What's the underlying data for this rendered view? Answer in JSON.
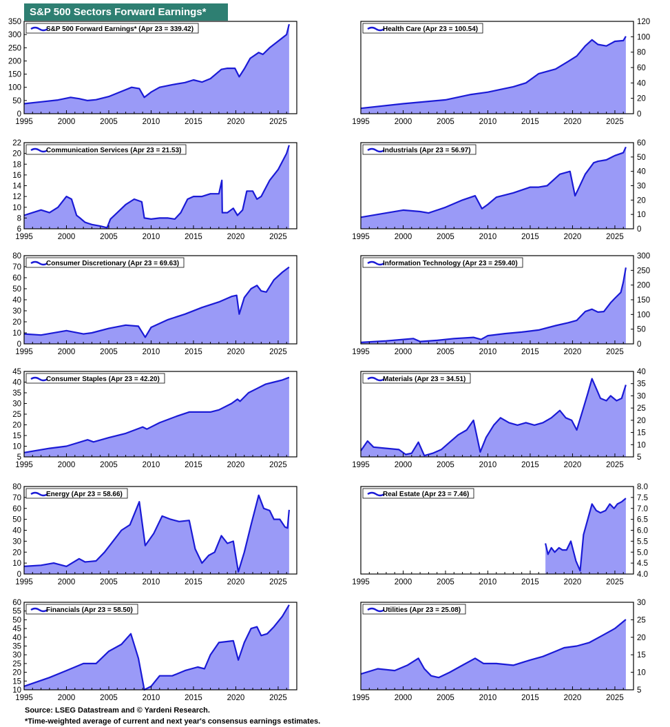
{
  "header": {
    "title": "S&P 500 Sectors Forward Earnings*"
  },
  "footer": {
    "source": "Source: LSEG Datastream and © Yardeni Research.",
    "note": "*Time-weighted average of current and next year's consensus earnings estimates."
  },
  "colors": {
    "line": "#1a1ad6",
    "fill": "#9a9af7",
    "banner": "#2e7f72"
  },
  "chart_data": [
    {
      "type": "area",
      "key": "sp500",
      "legend": "S&P 500 Forward Earnings* (Apr 23 = 339.42)",
      "yaxis": "left",
      "ylim": [
        0,
        350
      ],
      "yticks": [
        0,
        50,
        100,
        150,
        200,
        250,
        300,
        350
      ],
      "xticks": [
        1995,
        2000,
        2005,
        2010,
        2015,
        2020,
        2025
      ],
      "xlim": [
        1995,
        2027.2
      ],
      "x": [
        1995,
        1997,
        1999,
        2000.5,
        2001.5,
        2002.5,
        2003.5,
        2005,
        2006,
        2007.7,
        2008.6,
        2009.2,
        2010,
        2011,
        2012.5,
        2014,
        2015,
        2016,
        2017,
        2018.3,
        2019,
        2019.9,
        2020.4,
        2021,
        2021.7,
        2022.7,
        2023.2,
        2024,
        2025,
        2026,
        2026.3
      ],
      "y": [
        38,
        45,
        52,
        62,
        57,
        50,
        53,
        65,
        78,
        100,
        95,
        62,
        82,
        100,
        110,
        118,
        128,
        120,
        133,
        168,
        172,
        172,
        140,
        170,
        210,
        232,
        225,
        250,
        275,
        300,
        339.42
      ]
    },
    {
      "type": "area",
      "key": "health",
      "legend": "Health Care (Apr 23 = 100.54)",
      "yaxis": "right",
      "ylim": [
        0,
        120
      ],
      "yticks": [
        0,
        20,
        40,
        60,
        80,
        100,
        120
      ],
      "xticks": [
        1995,
        2000,
        2005,
        2010,
        2015,
        2020,
        2025
      ],
      "xlim": [
        1995,
        2027.2
      ],
      "x": [
        1995,
        2000,
        2005,
        2008,
        2010,
        2013,
        2014.5,
        2016,
        2018,
        2019.5,
        2020.5,
        2021.5,
        2022.3,
        2023,
        2024,
        2025,
        2026,
        2026.3
      ],
      "y": [
        7,
        13,
        18,
        25,
        28,
        35,
        40,
        52,
        58,
        68,
        75,
        88,
        96,
        90,
        88,
        94,
        95,
        100.54
      ]
    },
    {
      "type": "area",
      "key": "comm",
      "legend": "Communication Services (Apr 23 = 21.53)",
      "yaxis": "left",
      "ylim": [
        6,
        22
      ],
      "yticks": [
        6,
        8,
        10,
        12,
        14,
        16,
        18,
        20,
        22
      ],
      "xticks": [
        1995,
        2000,
        2005,
        2010,
        2015,
        2020,
        2025
      ],
      "xlim": [
        1995,
        2027.2
      ],
      "x": [
        1995,
        1996,
        1997,
        1998,
        1999,
        2000,
        2000.6,
        2001.2,
        2001.6,
        2002.2,
        2003,
        2004,
        2004.8,
        2005.2,
        2006,
        2007,
        2008,
        2008.9,
        2009.2,
        2010,
        2011,
        2012,
        2012.8,
        2013.5,
        2014.3,
        2015,
        2016,
        2017,
        2018,
        2018.35,
        2018.4,
        2019,
        2019.7,
        2020.2,
        2020.8,
        2021.3,
        2022,
        2022.5,
        2023,
        2024,
        2025,
        2026,
        2026.3
      ],
      "y": [
        8.5,
        9,
        9.5,
        9,
        10,
        12,
        11.5,
        8.5,
        8,
        7.2,
        6.8,
        6.5,
        6.2,
        7.8,
        9,
        10.5,
        11.5,
        11,
        8,
        7.8,
        8,
        8,
        7.8,
        9,
        11.5,
        12,
        12,
        12.5,
        12.5,
        15,
        9,
        9,
        9.8,
        8.5,
        9.5,
        13,
        13,
        11.5,
        12,
        15,
        17,
        20,
        21.53
      ]
    },
    {
      "type": "area",
      "key": "industrials",
      "legend": "Industrials (Apr 23 = 56.97)",
      "yaxis": "right",
      "ylim": [
        0,
        60
      ],
      "yticks": [
        0,
        10,
        20,
        30,
        40,
        50,
        60
      ],
      "xticks": [
        1995,
        2000,
        2005,
        2010,
        2015,
        2020,
        2025
      ],
      "xlim": [
        1995,
        2027.2
      ],
      "x": [
        1995,
        1998,
        2000,
        2002,
        2003,
        2005,
        2007,
        2008.5,
        2009.3,
        2010,
        2011,
        2013,
        2015,
        2016,
        2017,
        2018.5,
        2019.7,
        2020.3,
        2020.7,
        2021.5,
        2022.5,
        2023,
        2024,
        2025,
        2026,
        2026.3
      ],
      "y": [
        8,
        11,
        13,
        12,
        11,
        15,
        20,
        23,
        14,
        17,
        22,
        25,
        29,
        29,
        30,
        38,
        40,
        23,
        28,
        38,
        46,
        47,
        48,
        51,
        53,
        56.97
      ]
    },
    {
      "type": "area",
      "key": "consdisc",
      "legend": "Consumer Discretionary (Apr 23 = 69.63)",
      "yaxis": "left",
      "ylim": [
        0,
        80
      ],
      "yticks": [
        0,
        10,
        20,
        30,
        40,
        50,
        60,
        70,
        80
      ],
      "xticks": [
        1995,
        2000,
        2005,
        2010,
        2015,
        2020,
        2025
      ],
      "xlim": [
        1995,
        2027.2
      ],
      "x": [
        1995,
        1997,
        2000,
        2002,
        2003,
        2005,
        2007,
        2008.5,
        2009.3,
        2010,
        2012,
        2014,
        2016,
        2018,
        2019.5,
        2020.1,
        2020.4,
        2021,
        2021.8,
        2022.5,
        2023,
        2023.6,
        2024.5,
        2025.5,
        2026.3
      ],
      "y": [
        9,
        8,
        12,
        9,
        10,
        14,
        17,
        16,
        6,
        15,
        22,
        27,
        33,
        38,
        43,
        44,
        27,
        42,
        50,
        53,
        48,
        47,
        58,
        65,
        69.63
      ]
    },
    {
      "type": "area",
      "key": "infotech",
      "legend": "Information Technology (Apr 23 = 259.40)",
      "yaxis": "right",
      "ylim": [
        0,
        300
      ],
      "yticks": [
        0,
        50,
        100,
        150,
        200,
        250,
        300
      ],
      "xticks": [
        1995,
        2000,
        2005,
        2010,
        2015,
        2020,
        2025
      ],
      "xlim": [
        1995,
        2027.2
      ],
      "x": [
        1995,
        1998,
        2000,
        2001.2,
        2002,
        2004,
        2006,
        2008.3,
        2009.2,
        2010,
        2012,
        2014,
        2016,
        2018,
        2019.5,
        2020.5,
        2021.5,
        2022.3,
        2023,
        2023.7,
        2024.5,
        2025,
        2025.7,
        2026,
        2026.3
      ],
      "y": [
        5,
        10,
        15,
        18,
        8,
        12,
        18,
        22,
        15,
        28,
        35,
        40,
        47,
        62,
        72,
        80,
        110,
        118,
        108,
        110,
        140,
        155,
        175,
        210,
        259.4
      ]
    },
    {
      "type": "area",
      "key": "staples",
      "legend": "Consumer Staples (Apr 23 = 42.20)",
      "yaxis": "left",
      "ylim": [
        5,
        45
      ],
      "yticks": [
        5,
        10,
        15,
        20,
        25,
        30,
        35,
        40,
        45
      ],
      "xticks": [
        1995,
        2000,
        2005,
        2010,
        2015,
        2020,
        2025
      ],
      "xlim": [
        1995,
        2027.2
      ],
      "x": [
        1995,
        1998,
        2000,
        2002.5,
        2003.2,
        2005,
        2007,
        2009,
        2009.5,
        2011,
        2013,
        2014.5,
        2016,
        2017,
        2018,
        2019.5,
        2020.2,
        2020.5,
        2021.5,
        2022.5,
        2023.5,
        2024.5,
        2025.5,
        2026.3
      ],
      "y": [
        7,
        9,
        10,
        13,
        12,
        14,
        16,
        19,
        18,
        21,
        24,
        26,
        26,
        26,
        27,
        30,
        32,
        31,
        35,
        37,
        39,
        40,
        41,
        42.2
      ]
    },
    {
      "type": "area",
      "key": "materials",
      "legend": "Materials (Apr 23 = 34.51)",
      "yaxis": "right",
      "ylim": [
        5,
        40
      ],
      "yticks": [
        5,
        10,
        15,
        20,
        25,
        30,
        35,
        40
      ],
      "xticks": [
        1995,
        2000,
        2005,
        2010,
        2015,
        2020,
        2025
      ],
      "xlim": [
        1995,
        2027.2
      ],
      "x": [
        1995,
        1995.8,
        1996.5,
        1998,
        1999.5,
        2000.3,
        2001,
        2001.8,
        2002.5,
        2003.5,
        2004.5,
        2005.5,
        2006.5,
        2007.5,
        2008.3,
        2009.1,
        2009.8,
        2010.7,
        2011.5,
        2012.5,
        2013.5,
        2014.5,
        2015.5,
        2016.5,
        2017.5,
        2018.5,
        2019.2,
        2019.9,
        2020.5,
        2021.2,
        2021.8,
        2022.3,
        2022.8,
        2023.3,
        2024,
        2024.5,
        2025.2,
        2025.8,
        2026.3
      ],
      "y": [
        7.5,
        11.5,
        9,
        8.5,
        8,
        6,
        6.5,
        11,
        5.5,
        6.5,
        8,
        11,
        14,
        16,
        20,
        7,
        13,
        18,
        21,
        19,
        18,
        19,
        18,
        19,
        21,
        24,
        21,
        20,
        16,
        24,
        31,
        37,
        33,
        29,
        28,
        30,
        28,
        29,
        34.51
      ]
    },
    {
      "type": "area",
      "key": "energy",
      "legend": "Energy (Apr 23 = 58.66)",
      "yaxis": "left",
      "ylim": [
        0,
        80
      ],
      "yticks": [
        0,
        10,
        20,
        30,
        40,
        50,
        60,
        70,
        80
      ],
      "xticks": [
        1995,
        2000,
        2005,
        2010,
        2015,
        2020,
        2025
      ],
      "xlim": [
        1995,
        2027.2
      ],
      "x": [
        1995,
        1997,
        1998.5,
        2000,
        2001.5,
        2002.2,
        2003.5,
        2004.5,
        2005.5,
        2006.5,
        2007.5,
        2008.6,
        2009.3,
        2010.3,
        2011.3,
        2012.3,
        2013.3,
        2014.5,
        2015.2,
        2016,
        2016.8,
        2017.5,
        2018.3,
        2019,
        2019.7,
        2020.3,
        2021,
        2021.8,
        2022.7,
        2023.3,
        2024,
        2024.5,
        2025.2,
        2025.8,
        2026.1,
        2026.3
      ],
      "y": [
        7,
        8,
        10,
        7,
        14,
        11,
        12,
        20,
        30,
        40,
        45,
        66,
        26,
        37,
        53,
        50,
        48,
        49,
        23,
        10,
        17,
        20,
        35,
        28,
        30,
        2,
        20,
        45,
        72,
        60,
        58,
        50,
        50,
        43,
        42,
        58.66
      ]
    },
    {
      "type": "area",
      "key": "realestate",
      "legend": "Real Estate (Apr 23 = 7.46)",
      "yaxis": "right",
      "ylim": [
        4.0,
        8.0
      ],
      "yticks": [
        4.0,
        4.5,
        5.0,
        5.5,
        6.0,
        6.5,
        7.0,
        7.5,
        8.0
      ],
      "xticks": [
        1995,
        2000,
        2005,
        2010,
        2015,
        2020,
        2025
      ],
      "xlim": [
        1995,
        2027.2
      ],
      "x": [
        2016.8,
        2017.1,
        2017.5,
        2017.9,
        2018.4,
        2018.8,
        2019.3,
        2019.8,
        2020.4,
        2020.9,
        2021.3,
        2021.8,
        2022.3,
        2022.8,
        2023.3,
        2023.9,
        2024.4,
        2024.9,
        2025.3,
        2025.8,
        2026.3
      ],
      "y": [
        5.4,
        4.9,
        5.2,
        5.0,
        5.2,
        5.1,
        5.1,
        5.5,
        4.6,
        4.15,
        5.8,
        6.5,
        7.2,
        6.9,
        6.8,
        6.9,
        7.2,
        7.0,
        7.2,
        7.3,
        7.46
      ]
    },
    {
      "type": "area",
      "key": "financials",
      "legend": "Financials (Apr 23 = 58.50)",
      "yaxis": "left",
      "ylim": [
        10,
        60
      ],
      "yticks": [
        10,
        15,
        20,
        25,
        30,
        35,
        40,
        45,
        50,
        55,
        60
      ],
      "xticks": [
        1995,
        2000,
        2005,
        2010,
        2015,
        2020,
        2025
      ],
      "xlim": [
        1995,
        2027.2
      ],
      "x": [
        1995,
        1998,
        2000,
        2002,
        2003.5,
        2005,
        2006.5,
        2007.6,
        2008.5,
        2009.2,
        2010,
        2011,
        2012.5,
        2014,
        2015.5,
        2016.3,
        2017,
        2018,
        2019.7,
        2020.3,
        2021,
        2021.8,
        2022.5,
        2023,
        2023.7,
        2024.5,
        2025.5,
        2026.3
      ],
      "y": [
        12,
        17,
        21,
        25,
        25,
        32,
        36,
        42,
        28,
        10,
        12,
        18,
        18,
        21,
        23,
        22,
        30,
        37,
        38,
        27,
        37,
        45,
        46,
        41,
        42,
        46,
        52,
        58.5
      ]
    },
    {
      "type": "area",
      "key": "utilities",
      "legend": "Utilities (Apr 23 = 25.08)",
      "yaxis": "right",
      "ylim": [
        5,
        30
      ],
      "yticks": [
        5,
        10,
        15,
        20,
        25,
        30
      ],
      "xticks": [
        1995,
        2000,
        2005,
        2010,
        2015,
        2020,
        2025
      ],
      "xlim": [
        1995,
        2027.2
      ],
      "x": [
        1995,
        1997,
        1999,
        2000.5,
        2001.8,
        2002.5,
        2003.3,
        2004.2,
        2005.5,
        2007,
        2008.5,
        2009.5,
        2011,
        2013,
        2015,
        2016.5,
        2018,
        2019,
        2020.5,
        2022,
        2023.5,
        2025,
        2026.3
      ],
      "y": [
        9.5,
        11,
        10.5,
        12,
        14,
        11,
        9,
        8.5,
        10,
        12,
        14,
        12.5,
        12.5,
        12,
        13.5,
        14.5,
        16,
        17,
        17.5,
        18.5,
        20.5,
        22.5,
        25.08
      ]
    }
  ]
}
